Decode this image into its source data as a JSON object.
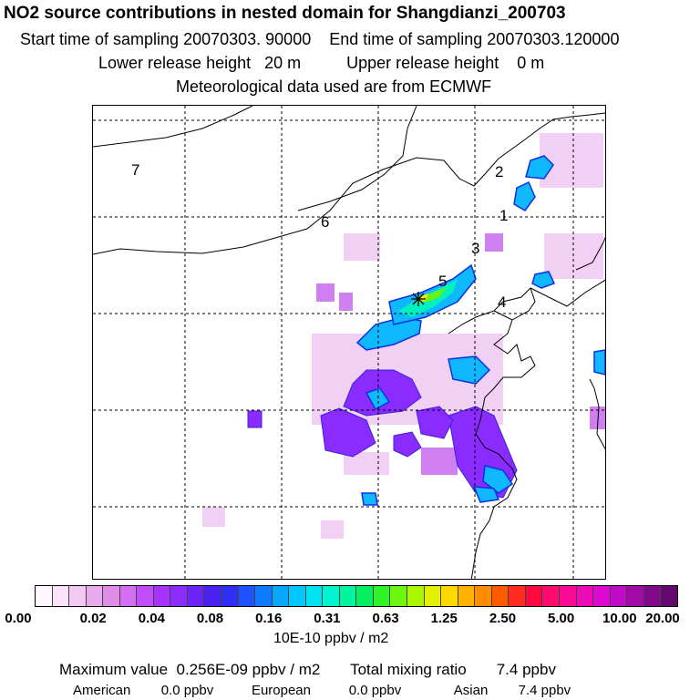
{
  "header": {
    "title": "NO2 source contributions in nested domain for Shangdianzi_200703",
    "line2": "Start time of sampling 20070303. 90000    End time of sampling 20070303.120000",
    "line3": "Lower release height   20 m          Upper release height    0 m",
    "line4": "Meteorological data used are from ECMWF"
  },
  "map": {
    "region_labels": [
      "1",
      "2",
      "3",
      "4",
      "5",
      "6",
      "7"
    ],
    "receptor": "receptor-star"
  },
  "colorbar": {
    "tick_labels": [
      "0.00",
      "0.02",
      "0.04",
      "0.08",
      "0.16",
      "0.31",
      "0.63",
      "1.25",
      "2.50",
      "5.00",
      "10.00",
      "20.00"
    ],
    "colors": [
      "#fff6ff",
      "#fae3fa",
      "#f3c8f3",
      "#eba9ee",
      "#e18ceb",
      "#d36ff0",
      "#c14dfa",
      "#a833ff",
      "#8d2bff",
      "#6a24f7",
      "#4a22f0",
      "#2f2ef5",
      "#1e52ff",
      "#0f7cff",
      "#07a6ff",
      "#00c8ff",
      "#00e3f0",
      "#00f5cf",
      "#00f59f",
      "#05f061",
      "#2ff528",
      "#6cf710",
      "#abf800",
      "#e6ee00",
      "#ffd800",
      "#ffb300",
      "#ff8c00",
      "#ff5c00",
      "#ff2a20",
      "#ff0a40",
      "#ff0a6d",
      "#fa0a95",
      "#ee0ab6",
      "#dc0ad1",
      "#c10ac8",
      "#a20aa8",
      "#82088a",
      "#640870"
    ],
    "unit": "10E-10 ppbv / m2"
  },
  "footer": {
    "max_value_label": "Maximum value",
    "max_value": "0.256E-09 ppbv / m2",
    "total_label": "Total mixing ratio",
    "total_value": "7.4 ppbv",
    "american_label": "American",
    "american_value": "0.0 ppbv",
    "european_label": "European",
    "european_value": "0.0 ppbv",
    "asian_label": "Asian",
    "asian_value": "7.4 ppbv"
  }
}
